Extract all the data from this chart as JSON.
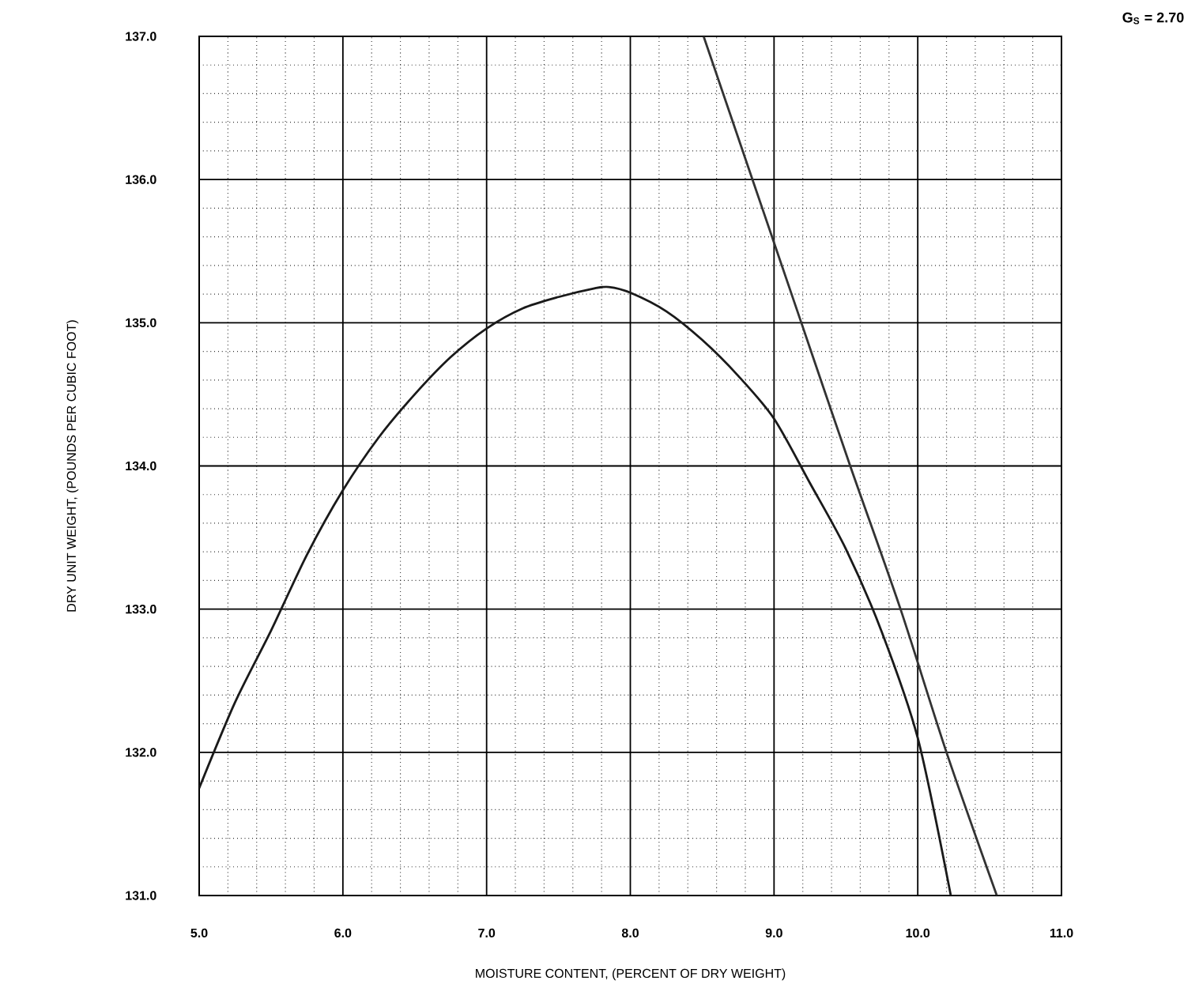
{
  "chart_data": {
    "type": "line",
    "xlabel": "MOISTURE CONTENT, (PERCENT OF DRY WEIGHT)",
    "ylabel": "DRY UNIT WEIGHT, (POUNDS PER CUBIC FOOT)",
    "annotations": [
      "G$_{S}$ = 2.70"
    ],
    "xlim": [
      5.0,
      11.0
    ],
    "ylim": [
      131.0,
      137.0
    ],
    "xticks": [
      {
        "value": 5,
        "label": "5.0"
      },
      {
        "value": 6,
        "label": "6.0"
      },
      {
        "value": 7,
        "label": "7.0"
      },
      {
        "value": 8,
        "label": "8.0"
      },
      {
        "value": 9,
        "label": "9.0"
      },
      {
        "value": 10,
        "label": "10.0"
      },
      {
        "value": 11,
        "label": "11.0"
      }
    ],
    "yticks": [
      {
        "value": 131,
        "label": "131.0"
      },
      {
        "value": 132,
        "label": "132.0"
      },
      {
        "value": 133,
        "label": "133.0"
      },
      {
        "value": 134,
        "label": "134.0"
      },
      {
        "value": 135,
        "label": "135.0"
      },
      {
        "value": 136,
        "label": "136.0"
      },
      {
        "value": 137,
        "label": "137.0"
      }
    ],
    "grid": true,
    "marker": "none",
    "line_style": "solid",
    "series": [
      {
        "color": "#1a1a1a",
        "x": [
          5.0,
          5.25,
          5.5,
          5.75,
          6.0,
          6.25,
          6.5,
          6.75,
          7.0,
          7.25,
          7.5,
          7.75,
          7.85,
          8.0,
          8.25,
          8.5,
          8.75,
          9.0,
          9.25,
          9.5,
          9.75,
          10.0,
          10.23
        ],
        "values": [
          131.75,
          132.35,
          132.85,
          133.38,
          133.83,
          134.2,
          134.5,
          134.76,
          134.96,
          135.1,
          135.18,
          135.24,
          135.25,
          135.21,
          135.08,
          134.88,
          134.63,
          134.33,
          133.88,
          133.42,
          132.84,
          132.1,
          131.0
        ]
      },
      {
        "color": "#333333",
        "x": [
          8.51,
          8.85,
          9.19,
          9.53,
          9.88,
          10.2,
          10.55
        ],
        "values": [
          137.0,
          136.0,
          135.0,
          134.0,
          133.0,
          132.0,
          131.0
        ]
      }
    ]
  }
}
